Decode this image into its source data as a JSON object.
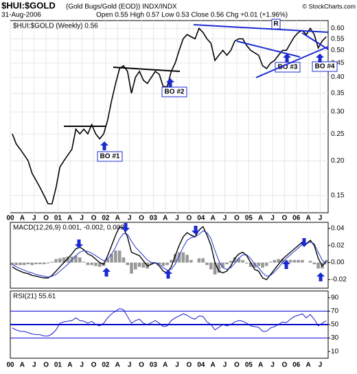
{
  "header": {
    "symbol": "$HUI:$GOLD",
    "description": "(Gold Bugs/Gold (EOD)) INDX/INDX",
    "date": "31-Aug-2006",
    "quote": "Open 0.55 High 0.57 Low 0.53 Close 0.56 Chg +0.01 (+1.96%)",
    "source": "© StockCharts.com"
  },
  "chart_data": [
    {
      "type": "line",
      "title": "$HUI:$GOLD (Weekly) 0.56",
      "log": true,
      "grid": true,
      "categories": [
        "00",
        null,
        null,
        "A",
        null,
        null,
        "J",
        null,
        null,
        "O",
        null,
        null,
        "01",
        null,
        null,
        "A",
        null,
        null,
        "J",
        null,
        null,
        "O",
        null,
        null,
        "02",
        null,
        null,
        "A",
        null,
        null,
        "J",
        null,
        null,
        "O",
        null,
        null,
        "03",
        null,
        null,
        "A",
        null,
        null,
        "J",
        null,
        null,
        "O",
        null,
        null,
        "04",
        null,
        null,
        "A",
        null,
        null,
        "J",
        null,
        null,
        "O",
        null,
        null,
        "05",
        null,
        null,
        "A",
        null,
        null,
        "J",
        null,
        null,
        "O",
        null,
        null,
        "06",
        null,
        null,
        "A",
        null,
        null,
        "J",
        null
      ],
      "series": [
        {
          "color": "#000000",
          "values": [
            0.25,
            0.23,
            0.22,
            0.21,
            0.2,
            0.18,
            0.17,
            0.16,
            0.15,
            0.14,
            0.14,
            0.16,
            0.19,
            0.2,
            0.21,
            0.22,
            0.26,
            0.25,
            0.26,
            0.25,
            0.27,
            0.25,
            0.24,
            0.25,
            0.28,
            0.33,
            0.38,
            0.43,
            0.44,
            0.42,
            0.35,
            0.4,
            0.42,
            0.39,
            0.38,
            0.4,
            0.42,
            0.41,
            0.37,
            0.37,
            0.42,
            0.45,
            0.5,
            0.55,
            0.57,
            0.56,
            0.55,
            0.6,
            0.58,
            0.55,
            0.53,
            0.46,
            0.48,
            0.5,
            0.48,
            0.5,
            0.54,
            0.55,
            0.55,
            0.52,
            0.5,
            0.49,
            0.48,
            0.44,
            0.43,
            0.45,
            0.46,
            0.48,
            0.5,
            0.5,
            0.53,
            0.56,
            0.58,
            0.59,
            0.57,
            0.6,
            0.57,
            0.51,
            0.54,
            0.56
          ]
        }
      ],
      "ylim": [
        0.13,
        0.64
      ],
      "yticks": [
        0.15,
        {
          "value": 0.2,
          "label": "0.20"
        },
        0.25,
        {
          "value": 0.3,
          "label": "0.30"
        },
        0.35,
        {
          "value": 0.4,
          "label": "0.40"
        },
        0.45,
        {
          "value": 0.5,
          "label": "0.50"
        },
        0.55,
        {
          "value": 0.6,
          "label": "0.60"
        }
      ],
      "annotations": [
        "BO #1",
        "BO #2",
        "BO #3",
        "BO #4",
        "R"
      ]
    },
    {
      "type": "macd",
      "title": "MACD(12,26,9) 0.001, -0.002, 0.003",
      "series": [
        {
          "color": "#000000",
          "values": [
            -0.005,
            -0.008,
            -0.01,
            -0.012,
            -0.013,
            -0.015,
            -0.016,
            -0.017,
            -0.018,
            -0.018,
            -0.015,
            -0.01,
            -0.005,
            0.0,
            0.005,
            0.01,
            0.016,
            0.018,
            0.015,
            0.01,
            0.008,
            0.004,
            0.0,
            -0.002,
            0.008,
            0.02,
            0.032,
            0.042,
            0.04,
            0.03,
            0.012,
            0.01,
            0.008,
            0.002,
            -0.004,
            -0.002,
            0.0,
            -0.004,
            -0.01,
            -0.012,
            -0.005,
            0.008,
            0.02,
            0.03,
            0.035,
            0.032,
            0.03,
            0.038,
            0.042,
            0.032,
            0.02,
            0.0,
            -0.01,
            -0.012,
            -0.01,
            -0.004,
            0.005,
            0.01,
            0.012,
            0.008,
            0.0,
            -0.008,
            -0.01,
            -0.018,
            -0.02,
            -0.014,
            -0.008,
            -0.002,
            0.004,
            0.008,
            0.012,
            0.016,
            0.02,
            0.024,
            0.022,
            0.026,
            0.02,
            0.005,
            -0.004,
            0.001
          ]
        },
        {
          "color": "#2233cc",
          "values": [
            -0.002,
            -0.005,
            -0.007,
            -0.009,
            -0.011,
            -0.012,
            -0.014,
            -0.015,
            -0.016,
            -0.017,
            -0.016,
            -0.014,
            -0.01,
            -0.006,
            -0.002,
            0.003,
            0.008,
            0.012,
            0.014,
            0.013,
            0.011,
            0.008,
            0.005,
            0.002,
            0.004,
            0.01,
            0.018,
            0.028,
            0.034,
            0.033,
            0.025,
            0.018,
            0.013,
            0.008,
            0.003,
            0.0,
            0.0,
            -0.002,
            -0.006,
            -0.009,
            -0.008,
            -0.002,
            0.008,
            0.018,
            0.026,
            0.029,
            0.03,
            0.033,
            0.037,
            0.035,
            0.028,
            0.014,
            0.002,
            -0.006,
            -0.008,
            -0.006,
            -0.001,
            0.005,
            0.009,
            0.009,
            0.005,
            -0.002,
            -0.006,
            -0.012,
            -0.016,
            -0.015,
            -0.011,
            -0.006,
            0.0,
            0.005,
            0.009,
            0.013,
            0.017,
            0.021,
            0.022,
            0.024,
            0.022,
            0.012,
            0.003,
            -0.002
          ]
        },
        {
          "type": "histogram",
          "color": "#999999",
          "values": [
            -0.003,
            -0.003,
            -0.003,
            -0.003,
            -0.002,
            -0.003,
            -0.002,
            -0.002,
            -0.002,
            -0.001,
            0.001,
            0.004,
            0.005,
            0.006,
            0.007,
            0.007,
            0.008,
            0.006,
            0.001,
            -0.003,
            -0.003,
            -0.004,
            -0.005,
            -0.004,
            0.004,
            0.01,
            0.014,
            0.014,
            0.006,
            -0.003,
            -0.013,
            -0.008,
            -0.005,
            -0.006,
            -0.007,
            -0.002,
            0.0,
            -0.002,
            -0.004,
            -0.003,
            0.003,
            0.01,
            0.012,
            0.012,
            0.009,
            0.003,
            0.0,
            0.005,
            0.005,
            -0.003,
            -0.008,
            -0.014,
            -0.012,
            -0.006,
            -0.002,
            0.002,
            0.006,
            0.005,
            0.003,
            -0.001,
            -0.005,
            -0.006,
            -0.004,
            -0.006,
            -0.004,
            0.001,
            0.003,
            0.004,
            0.004,
            0.003,
            0.003,
            0.003,
            0.003,
            0.003,
            0.0,
            0.002,
            -0.002,
            -0.007,
            -0.007,
            0.003
          ]
        }
      ],
      "ylim": [
        -0.03,
        0.047
      ],
      "yticks": [
        0.04,
        0.02,
        {
          "value": 0,
          "label": "0.00"
        },
        -0.02
      ]
    },
    {
      "type": "rsi",
      "title": "RSI(21) 55.61",
      "categories": [
        "00",
        null,
        null,
        "A",
        null,
        null,
        "J",
        null,
        null,
        "O",
        null,
        null,
        "01",
        null,
        null,
        "A",
        null,
        null,
        "J",
        null,
        null,
        "O",
        null,
        null,
        "02",
        null,
        null,
        "A",
        null,
        null,
        "J",
        null,
        null,
        "O",
        null,
        null,
        "03",
        null,
        null,
        "A",
        null,
        null,
        "J",
        null,
        null,
        "O",
        null,
        null,
        "04",
        null,
        null,
        "A",
        null,
        null,
        "J",
        null,
        null,
        "O",
        null,
        null,
        "05",
        null,
        null,
        "A",
        null,
        null,
        "J",
        null,
        null,
        "O",
        null,
        null,
        "06",
        null,
        null,
        "A",
        null,
        null,
        "J",
        null
      ],
      "series": [
        {
          "color": "#0000cc",
          "values": [
            45,
            42,
            40,
            40,
            38,
            36,
            35,
            35,
            33,
            33,
            36,
            42,
            52,
            54,
            55,
            56,
            60,
            56,
            55,
            52,
            55,
            50,
            48,
            52,
            60,
            66,
            70,
            74,
            72,
            62,
            52,
            56,
            58,
            52,
            50,
            53,
            56,
            52,
            47,
            48,
            56,
            60,
            63,
            66,
            64,
            60,
            58,
            63,
            62,
            54,
            50,
            42,
            46,
            50,
            48,
            50,
            54,
            56,
            55,
            52,
            48,
            47,
            46,
            40,
            40,
            45,
            47,
            50,
            54,
            53,
            58,
            62,
            64,
            66,
            60,
            65,
            58,
            48,
            52,
            55.61
          ]
        }
      ],
      "ylim": [
        0,
        100
      ],
      "yticks": [
        90,
        70,
        50,
        30,
        10
      ],
      "levels": [
        70,
        50,
        30
      ]
    }
  ]
}
